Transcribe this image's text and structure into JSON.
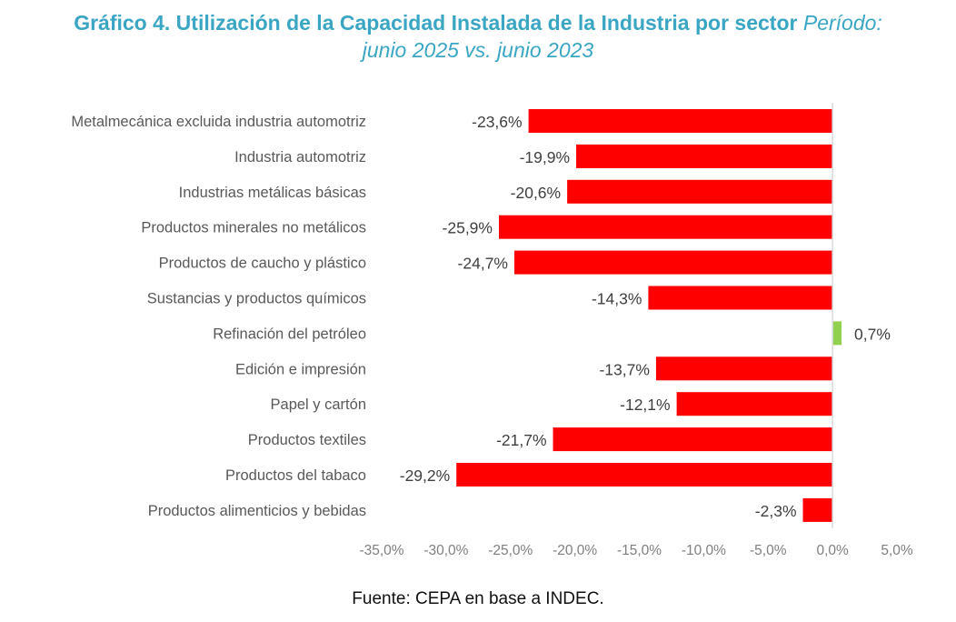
{
  "chart_data": {
    "type": "bar",
    "orientation": "horizontal",
    "title": "Gráfico 4. Utilización de la Capacidad Instalada de la Industria por sector",
    "subtitle_prefix": "Período:",
    "subtitle": "junio 2025 vs. junio 2023",
    "xlabel": "",
    "ylabel": "",
    "xlim": [
      -35,
      5
    ],
    "xticks": [
      -35,
      -30,
      -25,
      -20,
      -15,
      -10,
      -5,
      0,
      5
    ],
    "xtick_labels": [
      "-35,0%",
      "-30,0%",
      "-25,0%",
      "-20,0%",
      "-15,0%",
      "-10,0%",
      "-5,0%",
      "0,0%",
      "5,0%"
    ],
    "grid": false,
    "legend": "none",
    "colors": {
      "negative": "#ff0000",
      "positive": "#92d050",
      "zero_line": "#d9d9d9",
      "title": "#3aa6c4"
    },
    "categories": [
      "Metalmecánica excluida industria automotriz",
      "Industria automotriz",
      "Industrias metálicas básicas",
      "Productos minerales no metálicos",
      "Productos de caucho y plástico",
      "Sustancias y productos químicos",
      "Refinación del petróleo",
      "Edición e impresión",
      "Papel  y cartón",
      "Productos textiles",
      "Productos del tabaco",
      "Productos alimenticios y bebidas"
    ],
    "values": [
      -23.6,
      -19.9,
      -20.6,
      -25.9,
      -24.7,
      -14.3,
      0.7,
      -13.7,
      -12.1,
      -21.7,
      -29.2,
      -2.3
    ],
    "value_labels": [
      "-23,6%",
      "-19,9%",
      "-20,6%",
      "-25,9%",
      "-24,7%",
      "-14,3%",
      "0,7%",
      "-13,7%",
      "-12,1%",
      "-21,7%",
      "-29,2%",
      "-2,3%"
    ]
  },
  "source": "Fuente: CEPA en base a INDEC."
}
